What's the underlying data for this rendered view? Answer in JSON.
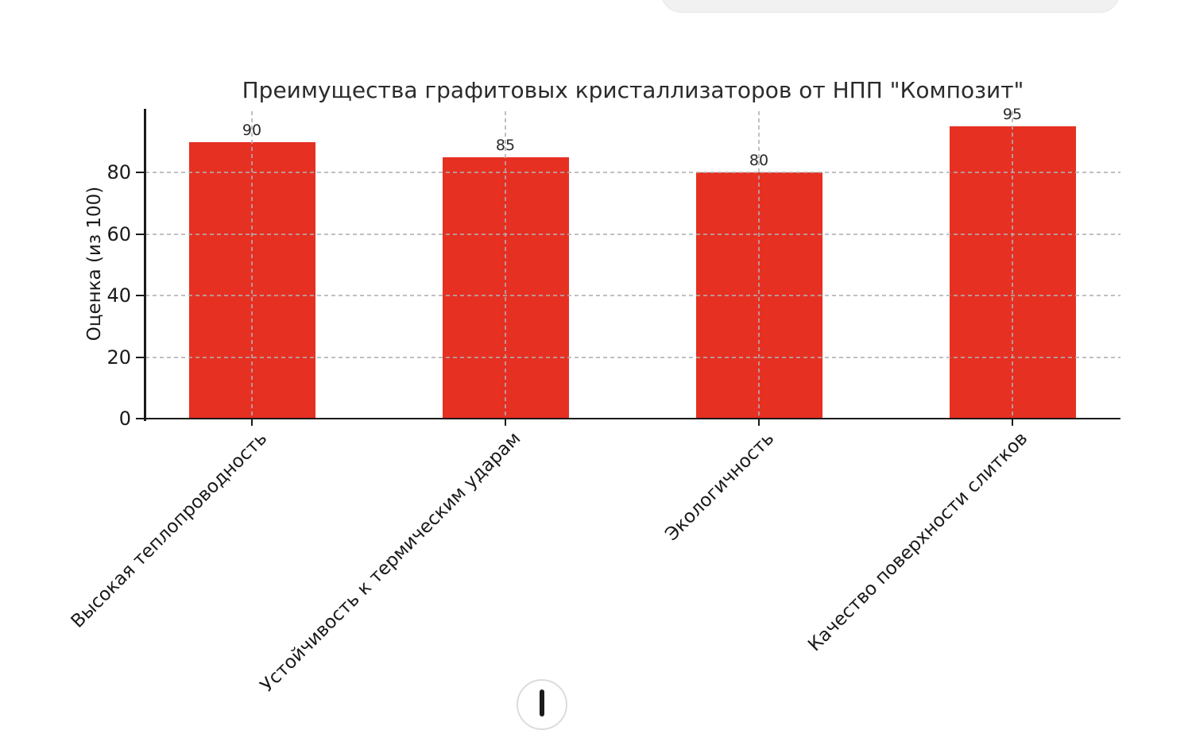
{
  "page": {
    "background": "#ffffff"
  },
  "floating_panel": {
    "note": ""
  },
  "chart_data": {
    "type": "bar",
    "title": "Преимущества графитовых кристаллизаторов от НПП \"Композит\"",
    "ylabel": "Оценка (из 100)",
    "xlabel": "",
    "categories": [
      "Высокая теплопроводность",
      "Устойчивость к термическим ударам",
      "Экологичность",
      "Качество поверхности слитков"
    ],
    "values": [
      90,
      85,
      80,
      95
    ],
    "value_labels": [
      "90",
      "85",
      "80",
      "95"
    ],
    "yticks": [
      0,
      20,
      40,
      60,
      80
    ],
    "ylim": [
      0,
      100
    ],
    "grid": "dashed",
    "legend_position": "none",
    "bar_color": "#e63022",
    "grid_color": "#b0b0b0",
    "axis_color": "#1a1a1a",
    "text_color": "#2b2b2b"
  },
  "overlay": {
    "scroll_button_icon": "arrow-down"
  }
}
